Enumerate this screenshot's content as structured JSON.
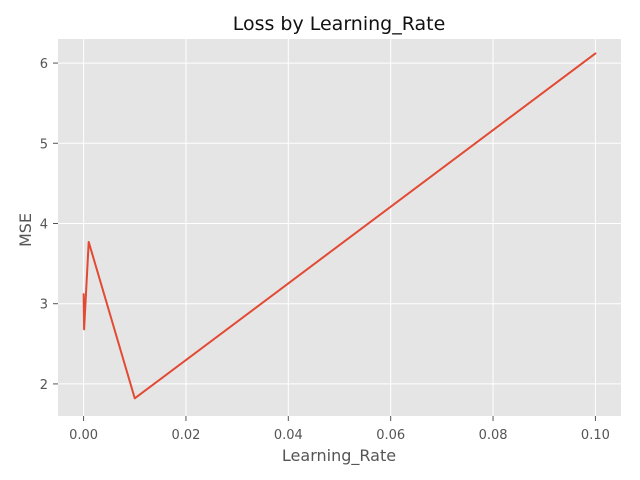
{
  "chart_data": {
    "type": "line",
    "title": "Loss by Learning_Rate",
    "xlabel": "Learning_Rate",
    "ylabel": "MSE",
    "xlim": [
      -0.005,
      0.105
    ],
    "ylim": [
      1.6,
      6.3
    ],
    "x_ticks": [
      0.0,
      0.02,
      0.04,
      0.06,
      0.08,
      0.1
    ],
    "x_tick_labels": [
      "0.00",
      "0.02",
      "0.04",
      "0.06",
      "0.08",
      "0.10"
    ],
    "y_ticks": [
      2,
      3,
      4,
      5,
      6
    ],
    "y_tick_labels": [
      "2",
      "3",
      "4",
      "5",
      "6"
    ],
    "grid": true,
    "legend": "none",
    "series": [
      {
        "x": [
          1e-05,
          0.0001,
          0.001,
          0.01,
          0.1
        ],
        "y": [
          3.12,
          2.68,
          3.77,
          1.82,
          6.12
        ]
      }
    ],
    "colors": {
      "plot_background": "#E5E5E5",
      "grid": "#FFFFFF",
      "line": "#E24A33",
      "text": "#555555"
    }
  }
}
